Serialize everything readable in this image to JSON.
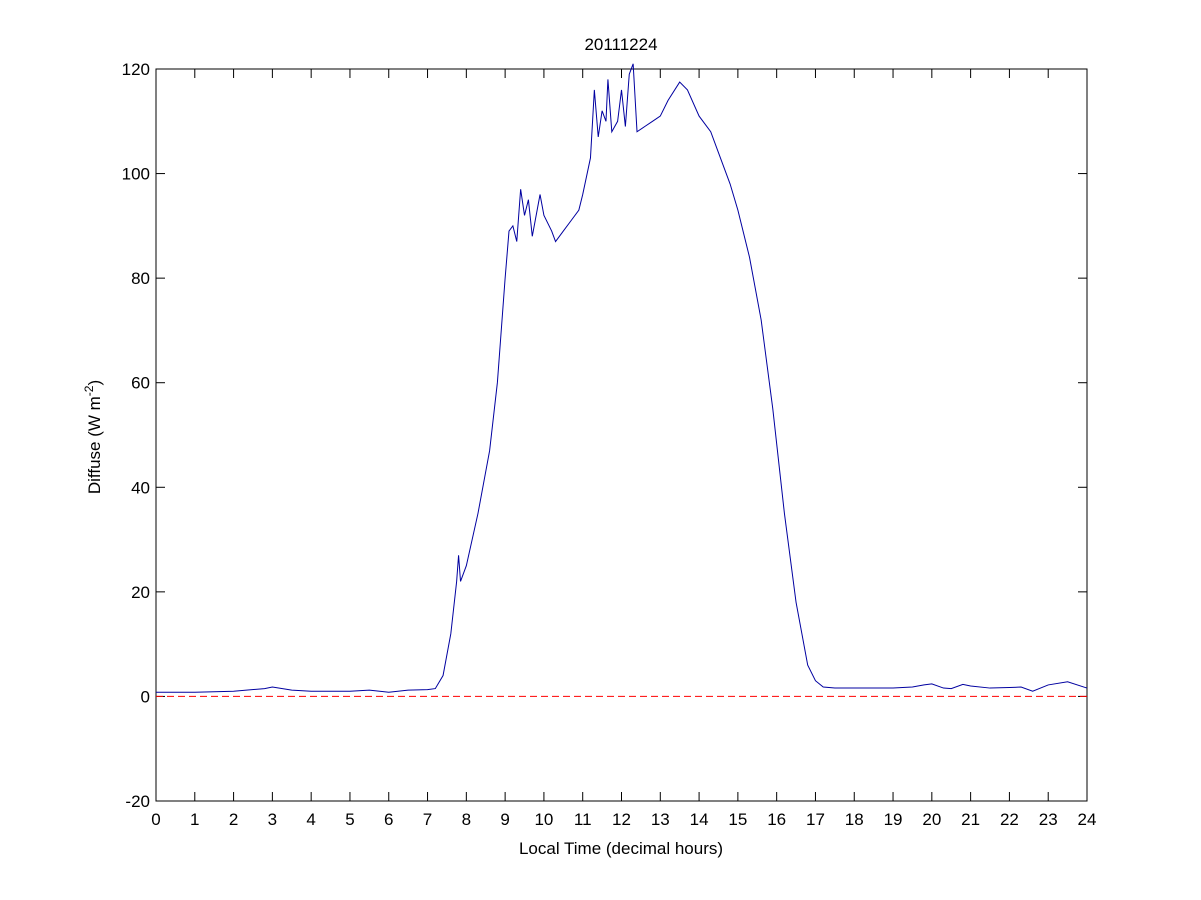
{
  "chart_data": {
    "type": "line",
    "title": "20111224",
    "xlabel": "Local Time (decimal hours)",
    "ylabel": {
      "text": "Diffuse (W m",
      "superscript": "-2",
      "suffix": ")"
    },
    "x": [
      0,
      1,
      2,
      2.8,
      3,
      3.5,
      4,
      5,
      5.5,
      6,
      6.5,
      7,
      7.2,
      7.4,
      7.6,
      7.75,
      7.8,
      7.85,
      8,
      8.3,
      8.6,
      8.8,
      9.0,
      9.1,
      9.2,
      9.3,
      9.4,
      9.5,
      9.6,
      9.7,
      9.8,
      9.9,
      10,
      10.2,
      10.3,
      10.5,
      10.7,
      10.9,
      11,
      11.2,
      11.3,
      11.4,
      11.5,
      11.6,
      11.65,
      11.75,
      11.9,
      12.0,
      12.1,
      12.2,
      12.3,
      12.4,
      12.6,
      12.8,
      13,
      13.2,
      13.5,
      13.7,
      14,
      14.3,
      14.5,
      14.8,
      15,
      15.3,
      15.6,
      15.9,
      16.2,
      16.5,
      16.8,
      17,
      17.2,
      17.5,
      18,
      19,
      19.5,
      19.8,
      20,
      20.3,
      20.5,
      20.8,
      21,
      21.5,
      22,
      22.3,
      22.6,
      23,
      23.5,
      24
    ],
    "values": [
      0.8,
      0.8,
      1.0,
      1.5,
      1.8,
      1.2,
      1.0,
      1.0,
      1.2,
      0.8,
      1.2,
      1.3,
      1.5,
      4,
      12,
      22,
      27,
      22,
      25,
      35,
      47,
      60,
      80,
      89,
      90,
      87,
      97,
      92,
      95,
      88,
      92,
      96,
      92,
      89,
      87,
      89,
      91,
      93,
      96,
      103,
      116,
      107,
      112,
      110,
      118,
      108,
      110,
      116,
      109,
      119,
      121,
      108,
      109,
      110,
      111,
      114,
      117.5,
      116,
      111,
      108,
      104,
      98,
      93,
      84,
      72,
      55,
      35,
      18,
      6,
      3,
      1.8,
      1.6,
      1.6,
      1.6,
      1.8,
      2.2,
      2.4,
      1.6,
      1.5,
      2.3,
      2.0,
      1.6,
      1.7,
      1.8,
      1.0,
      2.2,
      2.8,
      1.6
    ],
    "color": "#0000a0",
    "hline": {
      "value": 0,
      "color": "#ff0000",
      "style": "dashed"
    },
    "xlim": [
      0,
      24
    ],
    "xticks": [
      0,
      1,
      2,
      3,
      4,
      5,
      6,
      7,
      8,
      9,
      10,
      11,
      12,
      13,
      14,
      15,
      16,
      17,
      18,
      19,
      20,
      21,
      22,
      23,
      24
    ],
    "ylim": [
      -20,
      120
    ],
    "yticks": [
      -20,
      0,
      20,
      40,
      60,
      80,
      100,
      120
    ],
    "grid": false
  }
}
